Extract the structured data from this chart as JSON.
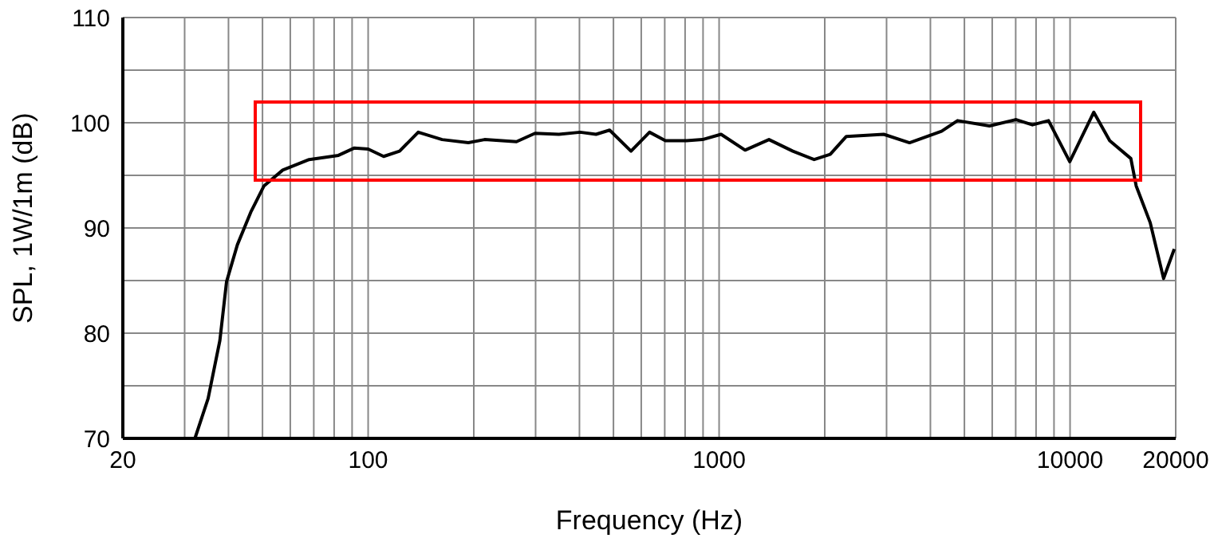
{
  "chart_data": {
    "type": "line",
    "xlabel": "Frequency (Hz)",
    "ylabel": "SPL, 1W/1m (dB)",
    "log": "x",
    "grid": true,
    "legend": false,
    "marker": "none",
    "line_style": "solid",
    "xlim": [
      20,
      20000
    ],
    "ylim": [
      70,
      110
    ],
    "xticks": [
      20,
      {
        "value": 30,
        "label": null
      },
      {
        "value": 40,
        "label": null
      },
      {
        "value": 50,
        "label": null
      },
      {
        "value": 60,
        "label": null
      },
      {
        "value": 70,
        "label": null
      },
      {
        "value": 80,
        "label": null
      },
      {
        "value": 90,
        "label": null
      },
      100,
      {
        "value": 200,
        "label": null
      },
      {
        "value": 300,
        "label": null
      },
      {
        "value": 400,
        "label": null
      },
      {
        "value": 500,
        "label": null
      },
      {
        "value": 600,
        "label": null
      },
      {
        "value": 700,
        "label": null
      },
      {
        "value": 800,
        "label": null
      },
      {
        "value": 900,
        "label": null
      },
      1000,
      {
        "value": 2000,
        "label": null
      },
      {
        "value": 3000,
        "label": null
      },
      {
        "value": 4000,
        "label": null
      },
      {
        "value": 5000,
        "label": null
      },
      {
        "value": 6000,
        "label": null
      },
      {
        "value": 7000,
        "label": null
      },
      {
        "value": 8000,
        "label": null
      },
      {
        "value": 9000,
        "label": null
      },
      10000,
      20000
    ],
    "yticks": [
      70,
      {
        "value": 75,
        "label": null
      },
      80,
      {
        "value": 85,
        "label": null
      },
      90,
      {
        "value": 95,
        "label": null
      },
      100,
      {
        "value": 105,
        "label": null
      },
      110
    ],
    "x": [
      32.1,
      35,
      37.8,
      39.5,
      42.4,
      46.3,
      50.5,
      57.1,
      67.9,
      82.3,
      91.4,
      100,
      110.7,
      122.9,
      138.9,
      162.5,
      193,
      214.6,
      264.6,
      298.9,
      349.5,
      402,
      446,
      487.6,
      561,
      633.5,
      703,
      808,
      897,
      1013,
      1186,
      1387,
      1622,
      1866,
      2073,
      2304,
      2945,
      3488,
      4305,
      4780,
      5893,
      7018,
      7812,
      8682,
      9980,
      11680,
      12970,
      14900,
      15430,
      16920,
      18470,
      19810
    ],
    "series": [
      {
        "color": "#000000",
        "values": [
          70,
          73.8,
          79.3,
          84.9,
          88.4,
          91.5,
          94,
          95.5,
          96.5,
          96.9,
          97.6,
          97.5,
          96.8,
          97.3,
          99.1,
          98.4,
          98.1,
          98.4,
          98.2,
          99,
          98.9,
          99.1,
          98.9,
          99.3,
          97.3,
          99.1,
          98.3,
          98.3,
          98.4,
          98.9,
          97.4,
          98.4,
          97.3,
          96.5,
          97,
          98.7,
          98.9,
          98.1,
          99.2,
          100.2,
          99.7,
          100.3,
          99.8,
          100.2,
          96.3,
          101,
          98.3,
          96.6,
          94,
          90.5,
          85.2,
          88
        ]
      }
    ]
  }
}
